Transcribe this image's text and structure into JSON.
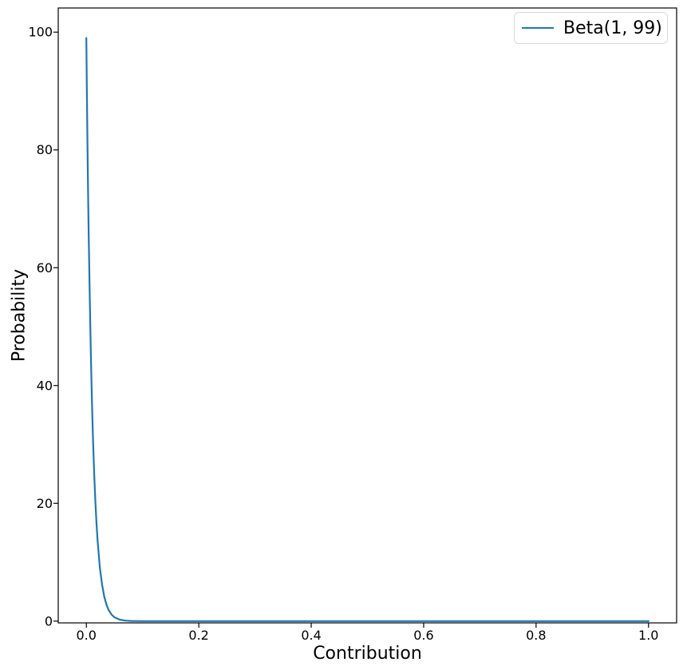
{
  "colors": {
    "line": "#1f77b4",
    "axis": "#000000",
    "tick_label": "#000000",
    "legend_border": "#d8d8d8",
    "background": "#ffffff"
  },
  "chart_data": {
    "type": "line",
    "title": "",
    "xlabel": "Contribution",
    "ylabel": "Probability",
    "xlim": [
      -0.05,
      1.05
    ],
    "ylim": [
      -0.3,
      104.1
    ],
    "grid": false,
    "legend": {
      "position": "upper right",
      "entries": [
        "Beta(1, 99)"
      ]
    },
    "xticks": {
      "values": [
        0.0,
        0.2,
        0.4,
        0.6,
        0.8,
        1.0
      ],
      "labels": [
        "0.0",
        "0.2",
        "0.4",
        "0.6",
        "0.8",
        "1.0"
      ]
    },
    "yticks": {
      "values": [
        0,
        20,
        40,
        60,
        80,
        100
      ],
      "labels": [
        "0",
        "20",
        "40",
        "60",
        "80",
        "100"
      ]
    },
    "series": [
      {
        "name": "Beta(1, 99)",
        "color": "#1f77b4",
        "x": [
          0,
          0.001,
          0.002,
          0.003,
          0.004,
          0.005,
          0.006,
          0.008,
          0.01,
          0.012,
          0.014,
          0.016,
          0.018,
          0.02,
          0.024,
          0.028,
          0.032,
          0.036,
          0.04,
          0.045,
          0.05,
          0.06,
          0.07,
          0.08,
          0.1,
          0.12,
          0.15,
          0.2,
          0.3,
          0.4,
          0.5,
          0.6,
          0.7,
          0.8,
          0.9,
          1.0
        ],
        "y": [
          99.0,
          89.75,
          81.34,
          73.75,
          66.84,
          60.58,
          54.89,
          45.06,
          36.97,
          30.33,
          24.86,
          20.38,
          16.7,
          13.67,
          9.15,
          6.12,
          4.08,
          2.72,
          1.81,
          1.09,
          0.65,
          0.23,
          0.08,
          0.03,
          0.003,
          0.0004,
          0,
          0,
          0,
          0,
          0,
          0,
          0,
          0,
          0,
          0
        ]
      }
    ]
  }
}
